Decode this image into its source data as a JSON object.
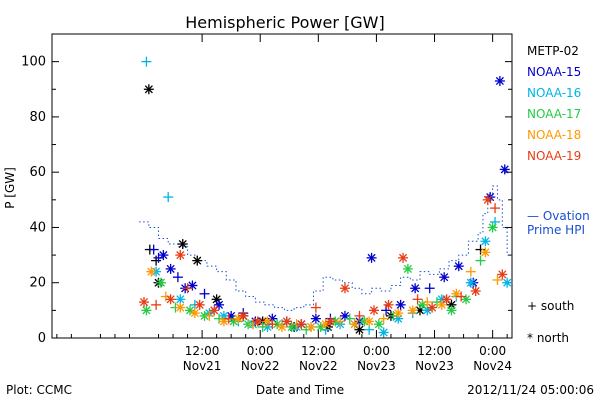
{
  "footer": {
    "plot_label": "Plot: CCMC",
    "timestamp": "2012/11/24 05:00:06"
  },
  "chart_data": {
    "type": "scatter",
    "title": "Hemispheric Power [GW]",
    "ylabel": "P [GW]",
    "xlabel": "Date and Time",
    "ylim": [
      0,
      110
    ],
    "yticks": [
      0,
      20,
      40,
      60,
      80,
      100
    ],
    "xlim": [
      -19,
      76
    ],
    "x_units": "hours since 2012-11-21 00:00 UT",
    "x_ticks": [
      {
        "x": 12,
        "time": "12:00",
        "date": "Nov21"
      },
      {
        "x": 24,
        "time": "0:00",
        "date": "Nov22"
      },
      {
        "x": 36,
        "time": "12:00",
        "date": "Nov22"
      },
      {
        "x": 48,
        "time": "0:00",
        "date": "Nov23"
      },
      {
        "x": 60,
        "time": "12:00",
        "date": "Nov23"
      },
      {
        "x": 72,
        "time": "0:00",
        "date": "Nov24"
      }
    ],
    "grid": false,
    "legend_position": "right",
    "series": [
      {
        "name": "METP-02",
        "color": "#000000",
        "points": [
          {
            "x": 1.0,
            "y": 90,
            "m": "n"
          },
          {
            "x": 1.2,
            "y": 32,
            "m": "s"
          },
          {
            "x": 2.5,
            "y": 28,
            "m": "s"
          },
          {
            "x": 3.0,
            "y": 20,
            "m": "n"
          },
          {
            "x": 8.0,
            "y": 34,
            "m": "n"
          },
          {
            "x": 11.0,
            "y": 28,
            "m": "n"
          },
          {
            "x": 15.0,
            "y": 14,
            "m": "n"
          },
          {
            "x": 20.5,
            "y": 8,
            "m": "n"
          },
          {
            "x": 24.5,
            "y": 6,
            "m": "n"
          },
          {
            "x": 31.0,
            "y": 4,
            "m": "n"
          },
          {
            "x": 38.0,
            "y": 4,
            "m": "n"
          },
          {
            "x": 44.5,
            "y": 3,
            "m": "n"
          },
          {
            "x": 51.0,
            "y": 8,
            "m": "n"
          },
          {
            "x": 57.0,
            "y": 10,
            "m": "n"
          },
          {
            "x": 63.5,
            "y": 12,
            "m": "n"
          },
          {
            "x": 69.5,
            "y": 32,
            "m": "s"
          }
        ]
      },
      {
        "name": "NOAA-15",
        "color": "#0000cc",
        "points": [
          {
            "x": 2.0,
            "y": 32,
            "m": "s"
          },
          {
            "x": 3.0,
            "y": 29,
            "m": "s"
          },
          {
            "x": 4.0,
            "y": 30,
            "m": "n"
          },
          {
            "x": 5.5,
            "y": 25,
            "m": "n"
          },
          {
            "x": 7.0,
            "y": 22,
            "m": "s"
          },
          {
            "x": 8.5,
            "y": 18,
            "m": "n"
          },
          {
            "x": 10.0,
            "y": 19,
            "m": "n"
          },
          {
            "x": 12.5,
            "y": 16,
            "m": "s"
          },
          {
            "x": 15.5,
            "y": 12,
            "m": "n"
          },
          {
            "x": 18.0,
            "y": 8,
            "m": "n"
          },
          {
            "x": 20.5,
            "y": 9,
            "m": "s"
          },
          {
            "x": 23.0,
            "y": 6,
            "m": "n"
          },
          {
            "x": 26.5,
            "y": 7,
            "m": "n"
          },
          {
            "x": 29.5,
            "y": 6,
            "m": "s"
          },
          {
            "x": 32.5,
            "y": 5,
            "m": "n"
          },
          {
            "x": 35.5,
            "y": 7,
            "m": "n"
          },
          {
            "x": 38.5,
            "y": 7,
            "m": "s"
          },
          {
            "x": 41.5,
            "y": 8,
            "m": "n"
          },
          {
            "x": 44.5,
            "y": 6,
            "m": "n"
          },
          {
            "x": 47.0,
            "y": 29,
            "m": "n"
          },
          {
            "x": 50.0,
            "y": 10,
            "m": "s"
          },
          {
            "x": 53.0,
            "y": 12,
            "m": "n"
          },
          {
            "x": 56.0,
            "y": 18,
            "m": "n"
          },
          {
            "x": 59.0,
            "y": 18,
            "m": "s"
          },
          {
            "x": 62.0,
            "y": 22,
            "m": "n"
          },
          {
            "x": 65.0,
            "y": 26,
            "m": "n"
          },
          {
            "x": 68.0,
            "y": 20,
            "m": "n"
          },
          {
            "x": 71.5,
            "y": 51,
            "m": "n"
          },
          {
            "x": 73.5,
            "y": 93,
            "m": "n"
          },
          {
            "x": 74.5,
            "y": 61,
            "m": "n"
          }
        ]
      },
      {
        "name": "NOAA-16",
        "color": "#00b4e8",
        "points": [
          {
            "x": 0.5,
            "y": 100,
            "m": "s"
          },
          {
            "x": 2.5,
            "y": 24,
            "m": "n"
          },
          {
            "x": 5.0,
            "y": 51,
            "m": "s"
          },
          {
            "x": 7.5,
            "y": 14,
            "m": "n"
          },
          {
            "x": 10.5,
            "y": 12,
            "m": "s"
          },
          {
            "x": 13.5,
            "y": 9,
            "m": "n"
          },
          {
            "x": 16.5,
            "y": 8,
            "m": "n"
          },
          {
            "x": 19.5,
            "y": 6,
            "m": "s"
          },
          {
            "x": 22.5,
            "y": 5,
            "m": "n"
          },
          {
            "x": 25.5,
            "y": 4,
            "m": "n"
          },
          {
            "x": 28.5,
            "y": 5,
            "m": "s"
          },
          {
            "x": 31.5,
            "y": 4,
            "m": "n"
          },
          {
            "x": 34.5,
            "y": 4,
            "m": "n"
          },
          {
            "x": 37.5,
            "y": 3,
            "m": "s"
          },
          {
            "x": 40.5,
            "y": 5,
            "m": "n"
          },
          {
            "x": 43.5,
            "y": 5,
            "m": "n"
          },
          {
            "x": 46.5,
            "y": 3,
            "m": "s"
          },
          {
            "x": 49.5,
            "y": 2,
            "m": "n"
          },
          {
            "x": 52.5,
            "y": 7,
            "m": "n"
          },
          {
            "x": 55.5,
            "y": 9,
            "m": "s"
          },
          {
            "x": 58.5,
            "y": 10,
            "m": "n"
          },
          {
            "x": 61.5,
            "y": 14,
            "m": "n"
          },
          {
            "x": 64.5,
            "y": 15,
            "m": "s"
          },
          {
            "x": 67.5,
            "y": 20,
            "m": "n"
          },
          {
            "x": 70.5,
            "y": 35,
            "m": "n"
          },
          {
            "x": 72.5,
            "y": 42,
            "m": "s"
          },
          {
            "x": 75.0,
            "y": 20,
            "m": "n"
          }
        ]
      },
      {
        "name": "NOAA-17",
        "color": "#22cc44",
        "points": [
          {
            "x": 0.5,
            "y": 10,
            "m": "n"
          },
          {
            "x": 3.5,
            "y": 20,
            "m": "n"
          },
          {
            "x": 6.5,
            "y": 11,
            "m": "s"
          },
          {
            "x": 9.5,
            "y": 10,
            "m": "n"
          },
          {
            "x": 12.5,
            "y": 8,
            "m": "n"
          },
          {
            "x": 15.5,
            "y": 7,
            "m": "s"
          },
          {
            "x": 18.5,
            "y": 6,
            "m": "n"
          },
          {
            "x": 21.5,
            "y": 5,
            "m": "n"
          },
          {
            "x": 24.5,
            "y": 4,
            "m": "s"
          },
          {
            "x": 27.5,
            "y": 5,
            "m": "n"
          },
          {
            "x": 30.5,
            "y": 4,
            "m": "n"
          },
          {
            "x": 33.5,
            "y": 3,
            "m": "s"
          },
          {
            "x": 36.5,
            "y": 4,
            "m": "n"
          },
          {
            "x": 39.5,
            "y": 6,
            "m": "n"
          },
          {
            "x": 42.5,
            "y": 7,
            "m": "s"
          },
          {
            "x": 45.5,
            "y": 6,
            "m": "n"
          },
          {
            "x": 48.5,
            "y": 5,
            "m": "n"
          },
          {
            "x": 51.5,
            "y": 8,
            "m": "s"
          },
          {
            "x": 54.5,
            "y": 25,
            "m": "n"
          },
          {
            "x": 57.5,
            "y": 12,
            "m": "n"
          },
          {
            "x": 60.5,
            "y": 13,
            "m": "s"
          },
          {
            "x": 63.5,
            "y": 10,
            "m": "n"
          },
          {
            "x": 66.5,
            "y": 14,
            "m": "n"
          },
          {
            "x": 69.5,
            "y": 28,
            "m": "s"
          },
          {
            "x": 72.0,
            "y": 40,
            "m": "n"
          }
        ]
      },
      {
        "name": "NOAA-18",
        "color": "#ff9900",
        "points": [
          {
            "x": 1.5,
            "y": 24,
            "m": "n"
          },
          {
            "x": 4.5,
            "y": 15,
            "m": "s"
          },
          {
            "x": 7.5,
            "y": 11,
            "m": "n"
          },
          {
            "x": 10.5,
            "y": 9,
            "m": "n"
          },
          {
            "x": 13.5,
            "y": 8,
            "m": "s"
          },
          {
            "x": 16.5,
            "y": 6,
            "m": "n"
          },
          {
            "x": 19.5,
            "y": 7,
            "m": "n"
          },
          {
            "x": 22.5,
            "y": 5,
            "m": "s"
          },
          {
            "x": 25.5,
            "y": 6,
            "m": "n"
          },
          {
            "x": 28.5,
            "y": 4,
            "m": "n"
          },
          {
            "x": 31.5,
            "y": 5,
            "m": "s"
          },
          {
            "x": 34.5,
            "y": 4,
            "m": "n"
          },
          {
            "x": 37.5,
            "y": 5,
            "m": "n"
          },
          {
            "x": 40.5,
            "y": 6,
            "m": "s"
          },
          {
            "x": 43.5,
            "y": 5,
            "m": "n"
          },
          {
            "x": 46.5,
            "y": 6,
            "m": "n"
          },
          {
            "x": 49.5,
            "y": 7,
            "m": "s"
          },
          {
            "x": 52.5,
            "y": 9,
            "m": "n"
          },
          {
            "x": 55.5,
            "y": 10,
            "m": "n"
          },
          {
            "x": 58.5,
            "y": 13,
            "m": "s"
          },
          {
            "x": 61.5,
            "y": 12,
            "m": "n"
          },
          {
            "x": 64.5,
            "y": 16,
            "m": "n"
          },
          {
            "x": 67.5,
            "y": 24,
            "m": "s"
          },
          {
            "x": 70.5,
            "y": 31,
            "m": "n"
          },
          {
            "x": 73.0,
            "y": 21,
            "m": "s"
          }
        ]
      },
      {
        "name": "NOAA-19",
        "color": "#e83c14",
        "points": [
          {
            "x": 0.0,
            "y": 13,
            "m": "n"
          },
          {
            "x": 2.5,
            "y": 12,
            "m": "s"
          },
          {
            "x": 5.5,
            "y": 14,
            "m": "n"
          },
          {
            "x": 7.5,
            "y": 30,
            "m": "n"
          },
          {
            "x": 9.0,
            "y": 18,
            "m": "s"
          },
          {
            "x": 11.5,
            "y": 12,
            "m": "n"
          },
          {
            "x": 14.5,
            "y": 10,
            "m": "n"
          },
          {
            "x": 17.5,
            "y": 7,
            "m": "s"
          },
          {
            "x": 20.5,
            "y": 8,
            "m": "n"
          },
          {
            "x": 23.5,
            "y": 6,
            "m": "n"
          },
          {
            "x": 26.5,
            "y": 5,
            "m": "s"
          },
          {
            "x": 29.5,
            "y": 6,
            "m": "n"
          },
          {
            "x": 32.5,
            "y": 5,
            "m": "n"
          },
          {
            "x": 35.5,
            "y": 11,
            "m": "s"
          },
          {
            "x": 38.5,
            "y": 6,
            "m": "n"
          },
          {
            "x": 41.5,
            "y": 18,
            "m": "n"
          },
          {
            "x": 44.5,
            "y": 8,
            "m": "s"
          },
          {
            "x": 47.5,
            "y": 10,
            "m": "n"
          },
          {
            "x": 50.5,
            "y": 12,
            "m": "n"
          },
          {
            "x": 53.5,
            "y": 29,
            "m": "n"
          },
          {
            "x": 56.5,
            "y": 14,
            "m": "s"
          },
          {
            "x": 59.5,
            "y": 11,
            "m": "n"
          },
          {
            "x": 62.5,
            "y": 14,
            "m": "n"
          },
          {
            "x": 65.5,
            "y": 15,
            "m": "s"
          },
          {
            "x": 68.5,
            "y": 17,
            "m": "n"
          },
          {
            "x": 71.0,
            "y": 50,
            "m": "n"
          },
          {
            "x": 72.5,
            "y": 47,
            "m": "s"
          },
          {
            "x": 74.0,
            "y": 23,
            "m": "n"
          }
        ]
      }
    ],
    "ovation": {
      "name": "Ovation Prime HPI",
      "color": "#1a4fd6",
      "style": "dotted-step",
      "x": [
        -1,
        1,
        3,
        5,
        7,
        9,
        11,
        13,
        15,
        17,
        19,
        21,
        23,
        25,
        27,
        29,
        31,
        33,
        35,
        37,
        39,
        41,
        43,
        45,
        47,
        49,
        51,
        53,
        55,
        57,
        59,
        61,
        63,
        65,
        67,
        69,
        70,
        71,
        72,
        73,
        74,
        75
      ],
      "y": [
        42,
        40,
        36,
        34,
        33,
        30,
        28,
        26,
        24,
        21,
        17,
        15,
        13,
        12,
        11,
        10,
        11,
        12,
        17,
        22,
        21,
        20,
        18,
        16,
        18,
        17,
        19,
        22,
        21,
        24,
        23,
        25,
        28,
        30,
        35,
        38,
        45,
        52,
        55,
        50,
        40,
        30
      ]
    },
    "legend_entries": [
      "METP-02",
      "NOAA-15",
      "NOAA-16",
      "NOAA-17",
      "NOAA-18",
      "NOAA-19"
    ],
    "ovation_label": [
      "— Ovation",
      "Prime HPI"
    ],
    "marker_legend": {
      "south": "+ south",
      "north": "* north"
    }
  }
}
